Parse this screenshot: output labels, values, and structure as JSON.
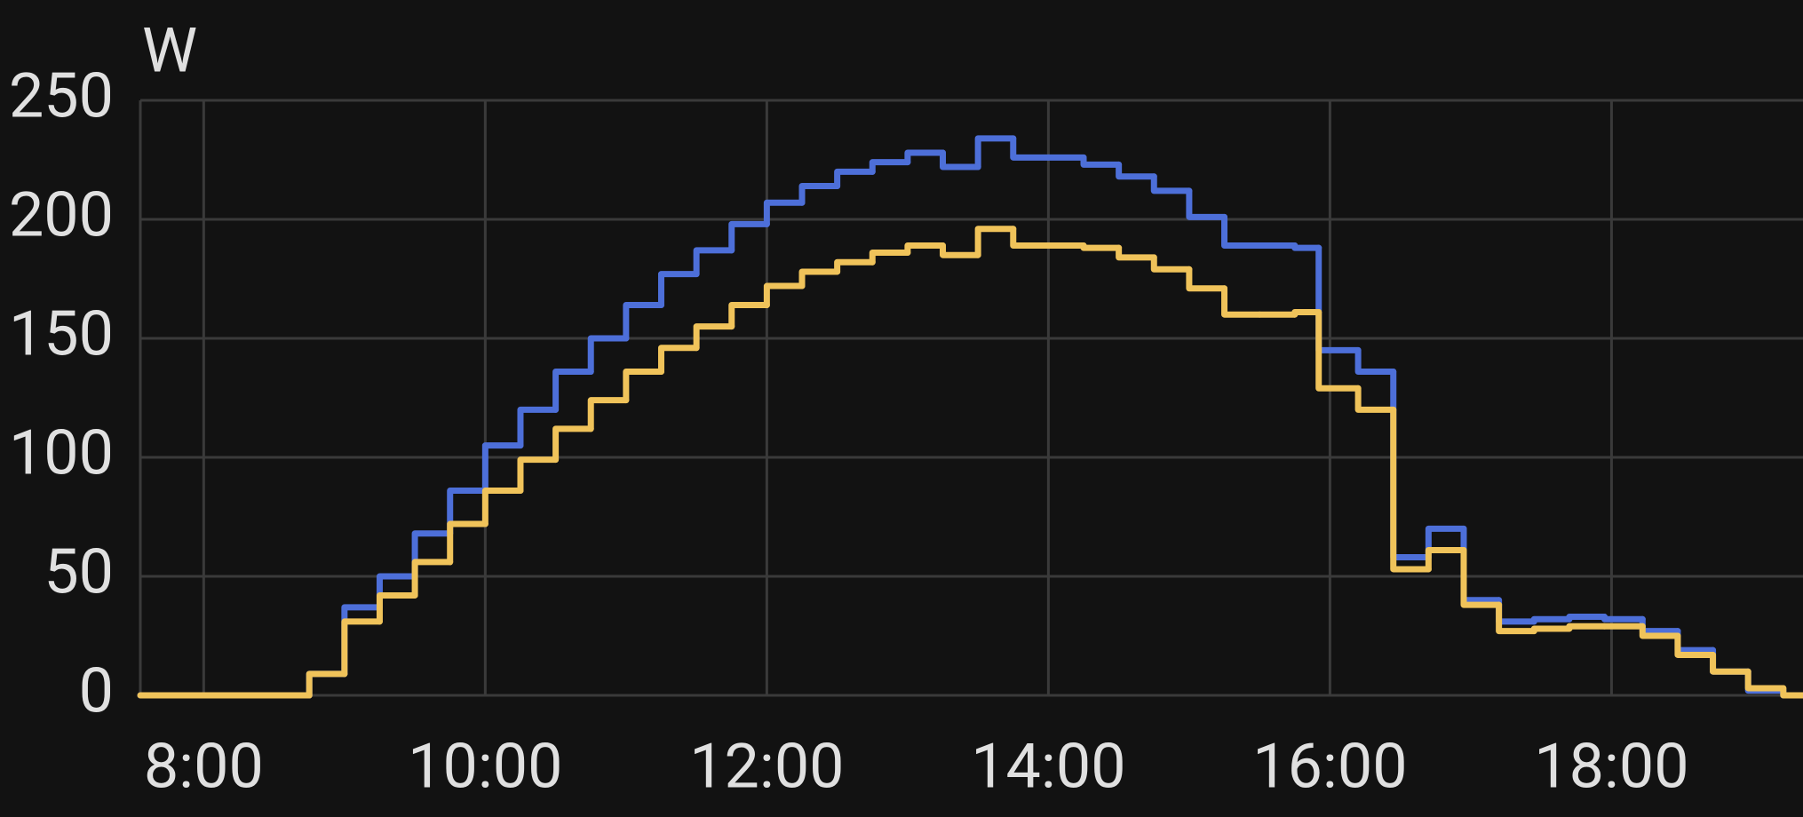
{
  "chart_data": {
    "type": "step",
    "y_axis_label": "W",
    "x": [
      7.55,
      8.75,
      9,
      9.25,
      9.5,
      9.75,
      10,
      10.25,
      10.5,
      10.75,
      11,
      11.25,
      11.5,
      11.75,
      12,
      12.25,
      12.5,
      12.75,
      13,
      13.25,
      13.5,
      13.75,
      14,
      14.25,
      14.5,
      14.75,
      15,
      15.25,
      15.5,
      15.75,
      15.92,
      16.2,
      16.45,
      16.7,
      16.95,
      17.2,
      17.45,
      17.7,
      17.95,
      18.22,
      18.47,
      18.72,
      18.97,
      19.22
    ],
    "series": [
      {
        "color": "#4d6fd9",
        "values": [
          0,
          9,
          37,
          50,
          68,
          86,
          105,
          120,
          136,
          150,
          164,
          177,
          187,
          198,
          207,
          214,
          220,
          224,
          228,
          222,
          234,
          226,
          226,
          223,
          218,
          212,
          201,
          189,
          189,
          188,
          145,
          136,
          58,
          70,
          40,
          31,
          32,
          33,
          32,
          27,
          19,
          10,
          2,
          0
        ]
      },
      {
        "color": "#f0c35a",
        "values": [
          0,
          9,
          31,
          42,
          56,
          72,
          86,
          99,
          112,
          124,
          136,
          146,
          155,
          164,
          172,
          178,
          182,
          186,
          189,
          185,
          196,
          189,
          189,
          188,
          184,
          179,
          171,
          160,
          160,
          161,
          129,
          120,
          53,
          61,
          38,
          27,
          28,
          29,
          29,
          25,
          17,
          10,
          3,
          0
        ]
      }
    ],
    "xlim": [
      7.55,
      19.36
    ],
    "xticks": [
      {
        "value": 8,
        "label": "8:00"
      },
      {
        "value": 10,
        "label": "10:00"
      },
      {
        "value": 12,
        "label": "12:00"
      },
      {
        "value": 14,
        "label": "14:00"
      },
      {
        "value": 16,
        "label": "16:00"
      },
      {
        "value": 18,
        "label": "18:00"
      }
    ],
    "ylim": [
      0,
      250
    ],
    "yticks": [
      0,
      50,
      100,
      150,
      200,
      250
    ],
    "grid": true
  }
}
